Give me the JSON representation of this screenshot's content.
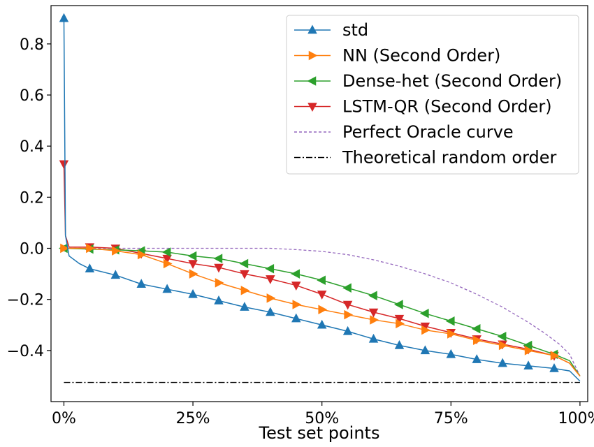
{
  "chart_data": {
    "type": "line",
    "xlabel": "Test set points",
    "ylabel": "",
    "x_ticks": [
      "0%",
      "25%",
      "50%",
      "75%",
      "100%"
    ],
    "y_ticks": [
      "−0.4",
      "−0.2",
      "0.0",
      "0.2",
      "0.4",
      "0.6",
      "0.8"
    ],
    "xlim": [
      -2.5,
      101.5
    ],
    "ylim": [
      -0.6,
      0.95
    ],
    "grid": false,
    "legend_position": "top-right",
    "series": [
      {
        "name": "std",
        "color": "#1f77b4",
        "marker": "triangle-up",
        "line": "solid",
        "x": [
          0,
          0.3,
          1,
          3,
          5,
          10,
          15,
          20,
          25,
          30,
          35,
          40,
          45,
          50,
          55,
          60,
          65,
          70,
          75,
          80,
          85,
          90,
          95,
          98,
          100
        ],
        "y": [
          0.9,
          0.05,
          -0.03,
          -0.06,
          -0.08,
          -0.105,
          -0.14,
          -0.16,
          -0.18,
          -0.205,
          -0.23,
          -0.25,
          -0.275,
          -0.3,
          -0.325,
          -0.355,
          -0.38,
          -0.4,
          -0.415,
          -0.435,
          -0.45,
          -0.46,
          -0.47,
          -0.48,
          -0.52
        ],
        "markers": [
          0,
          5,
          10,
          15,
          20,
          25,
          30,
          35,
          40,
          45,
          50,
          55,
          60,
          65,
          70,
          75,
          80,
          85,
          90,
          95
        ]
      },
      {
        "name": "NN (Second Order)",
        "color": "#ff7f0e",
        "marker": "triangle-right",
        "line": "solid",
        "x": [
          0,
          5,
          10,
          15,
          20,
          25,
          30,
          35,
          40,
          45,
          50,
          55,
          60,
          65,
          70,
          75,
          80,
          85,
          90,
          95,
          98,
          100
        ],
        "y": [
          0.0,
          0.0,
          -0.01,
          -0.025,
          -0.06,
          -0.1,
          -0.135,
          -0.165,
          -0.195,
          -0.22,
          -0.24,
          -0.26,
          -0.28,
          -0.295,
          -0.32,
          -0.335,
          -0.36,
          -0.38,
          -0.4,
          -0.42,
          -0.45,
          -0.5
        ],
        "markers": [
          0,
          5,
          10,
          15,
          20,
          25,
          30,
          35,
          40,
          45,
          50,
          55,
          60,
          65,
          70,
          75,
          80,
          85,
          90,
          95
        ]
      },
      {
        "name": "Dense-het (Second Order)",
        "color": "#2ca02c",
        "marker": "triangle-left",
        "line": "solid",
        "x": [
          0,
          5,
          10,
          15,
          20,
          25,
          30,
          35,
          40,
          45,
          50,
          55,
          60,
          65,
          70,
          75,
          80,
          85,
          90,
          95,
          98,
          100
        ],
        "y": [
          0.0,
          -0.003,
          -0.006,
          -0.01,
          -0.015,
          -0.03,
          -0.04,
          -0.06,
          -0.08,
          -0.1,
          -0.125,
          -0.155,
          -0.185,
          -0.22,
          -0.255,
          -0.285,
          -0.315,
          -0.345,
          -0.38,
          -0.415,
          -0.44,
          -0.5
        ],
        "markers": [
          0,
          5,
          10,
          15,
          20,
          25,
          30,
          35,
          40,
          45,
          50,
          55,
          60,
          65,
          70,
          75,
          80,
          85,
          90,
          95
        ]
      },
      {
        "name": "LSTM-QR (Second Order)",
        "color": "#d62728",
        "marker": "triangle-down",
        "line": "solid",
        "x": [
          0,
          0.3,
          1,
          5,
          10,
          15,
          20,
          25,
          30,
          35,
          40,
          45,
          50,
          55,
          60,
          65,
          70,
          75,
          80,
          85,
          90,
          95,
          98,
          100
        ],
        "y": [
          0.33,
          0.05,
          0.005,
          0.005,
          0.0,
          -0.02,
          -0.04,
          -0.06,
          -0.075,
          -0.1,
          -0.12,
          -0.145,
          -0.18,
          -0.22,
          -0.25,
          -0.275,
          -0.305,
          -0.33,
          -0.355,
          -0.375,
          -0.395,
          -0.42,
          -0.45,
          -0.5
        ],
        "markers": [
          0,
          5,
          10,
          15,
          20,
          25,
          30,
          35,
          40,
          45,
          50,
          55,
          60,
          65,
          70,
          75,
          80,
          85,
          90,
          95
        ]
      },
      {
        "name": "Perfect Oracle curve",
        "color": "#9467bd",
        "marker": "none",
        "line": "dashed",
        "x": [
          0,
          10,
          20,
          30,
          40,
          45,
          50,
          55,
          60,
          65,
          70,
          75,
          80,
          85,
          90,
          93,
          96,
          98,
          100
        ],
        "y": [
          0.0,
          0.0,
          0.0,
          0.0,
          0.0,
          -0.005,
          -0.012,
          -0.025,
          -0.045,
          -0.07,
          -0.1,
          -0.135,
          -0.18,
          -0.23,
          -0.29,
          -0.33,
          -0.375,
          -0.415,
          -0.5
        ],
        "markers": []
      },
      {
        "name": "Theoretical random order",
        "color": "#000000",
        "marker": "none",
        "line": "dashdot",
        "x": [
          0,
          100
        ],
        "y": [
          -0.525,
          -0.525
        ],
        "markers": []
      }
    ]
  }
}
